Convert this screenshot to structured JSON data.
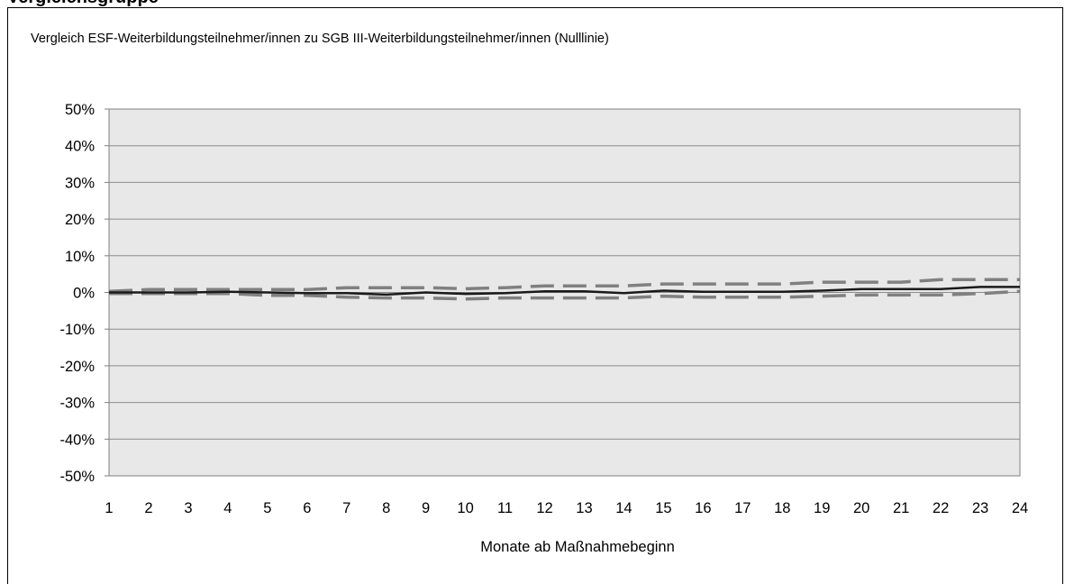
{
  "page_top_fragment": "Vergleichsgruppe",
  "chart_data": {
    "type": "line",
    "title": "Vergleich ESF-Weiterbildungsteilnehmer/innen zu SGB III-Weiterbildungsteilnehmer/innen (Nulllinie)",
    "xlabel": "Monate ab Maßnahmebeginn",
    "ylabel": "",
    "x": [
      1,
      2,
      3,
      4,
      5,
      6,
      7,
      8,
      9,
      10,
      11,
      12,
      13,
      14,
      15,
      16,
      17,
      18,
      19,
      20,
      21,
      22,
      23,
      24
    ],
    "y_ticks": [
      "50%",
      "40%",
      "30%",
      "20%",
      "10%",
      "0%",
      "-10%",
      "-20%",
      "-30%",
      "-40%",
      "-50%"
    ],
    "ylim": [
      -50,
      50
    ],
    "grid": true,
    "legend": "none",
    "series": [
      {
        "style": "solid",
        "color": "#1a1a1a",
        "values": [
          0,
          0,
          0,
          0.2,
          0,
          -0.2,
          -0.2,
          -0.6,
          0,
          -0.4,
          -0.2,
          0.3,
          0.3,
          -0.2,
          0.5,
          0.2,
          0.2,
          0.2,
          0.5,
          0.9,
          0.9,
          0.9,
          1.5,
          1.5
        ]
      },
      {
        "style": "dashed",
        "color": "#808080",
        "values": [
          0.3,
          0.8,
          0.8,
          0.8,
          0.8,
          0.8,
          1.3,
          1.3,
          1.3,
          1.0,
          1.3,
          1.8,
          1.8,
          1.8,
          2.3,
          2.3,
          2.3,
          2.3,
          2.8,
          2.8,
          2.8,
          3.5,
          3.5,
          3.5
        ]
      },
      {
        "style": "dashed",
        "color": "#808080",
        "values": [
          -0.3,
          -0.3,
          -0.3,
          -0.3,
          -0.8,
          -0.8,
          -1.3,
          -1.5,
          -1.5,
          -1.8,
          -1.5,
          -1.5,
          -1.5,
          -1.5,
          -1.0,
          -1.3,
          -1.3,
          -1.3,
          -1.0,
          -0.7,
          -0.7,
          -0.7,
          -0.3,
          0.3
        ]
      }
    ],
    "colors": {
      "plot_background": "#e8e8e8",
      "gridline": "#8c8c8c",
      "axis": "#808080"
    }
  }
}
